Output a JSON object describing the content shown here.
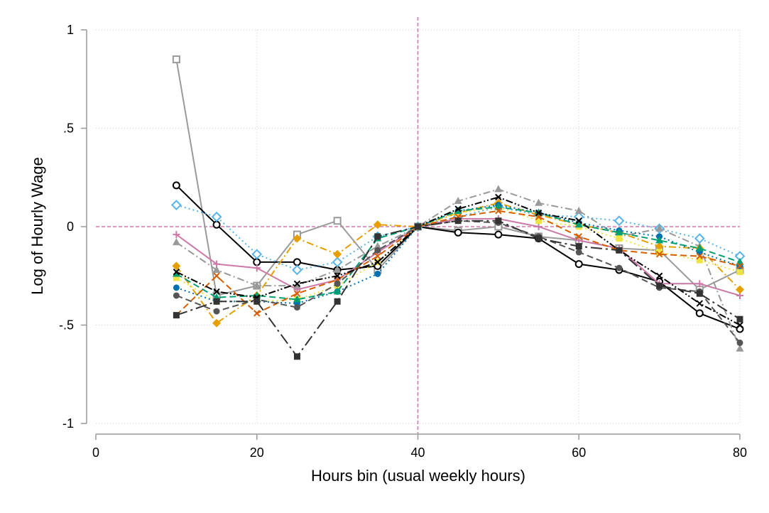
{
  "chart_data": {
    "type": "line",
    "xlabel": "Hours bin (usual weekly hours)",
    "ylabel": "Log of Hourly Wage",
    "xlim": [
      0,
      80
    ],
    "ylim": [
      -1,
      1
    ],
    "xticks": [
      0,
      20,
      40,
      60,
      80
    ],
    "yticks": [
      -1,
      -0.5,
      0,
      0.5,
      1
    ],
    "xtick_labels": [
      "0",
      "20",
      "40",
      "60",
      "80"
    ],
    "ytick_labels": [
      "-1",
      "-.5",
      "0",
      ".5",
      "1"
    ],
    "grid": "dotted",
    "reference_lines": {
      "x": 40,
      "y": 0,
      "color": "#d876a8"
    },
    "x": [
      10,
      15,
      20,
      25,
      30,
      35,
      40,
      45,
      50,
      55,
      60,
      65,
      70,
      75,
      80
    ],
    "series": [
      {
        "color": "#9a9a9a",
        "marker": "hollow-square",
        "dash": "solid",
        "values": [
          0.85,
          -0.35,
          -0.3,
          -0.04,
          0.03,
          -0.22,
          0.0,
          -0.02,
          0.0,
          -0.05,
          -0.07,
          -0.11,
          -0.12,
          -0.32,
          -0.22
        ]
      },
      {
        "color": "#000000",
        "marker": "hollow-circle",
        "dash": "solid",
        "values": [
          0.21,
          0.01,
          -0.18,
          -0.18,
          -0.22,
          -0.2,
          0.0,
          -0.03,
          -0.04,
          -0.06,
          -0.19,
          -0.22,
          -0.28,
          -0.44,
          -0.52
        ]
      },
      {
        "color": "#56b4e9",
        "marker": "hollow-diamond",
        "dash": "dotted",
        "values": [
          0.11,
          0.05,
          -0.14,
          -0.22,
          -0.18,
          -0.05,
          0.0,
          0.05,
          0.1,
          0.06,
          0.05,
          0.03,
          -0.01,
          -0.06,
          -0.15
        ]
      },
      {
        "color": "#cc79a7",
        "marker": "plus",
        "dash": "solid",
        "values": [
          -0.04,
          -0.19,
          -0.21,
          -0.32,
          -0.27,
          -0.13,
          0.0,
          0.04,
          0.04,
          0.0,
          -0.07,
          -0.11,
          -0.29,
          -0.29,
          -0.35
        ]
      },
      {
        "color": "#999999",
        "marker": "triangle",
        "dash": "dashdot",
        "values": [
          -0.08,
          -0.22,
          -0.3,
          -0.3,
          -0.22,
          -0.1,
          0.0,
          0.13,
          0.19,
          0.12,
          0.08,
          -0.05,
          -0.01,
          -0.1,
          -0.62
        ]
      },
      {
        "color": "#e69f00",
        "marker": "diamond",
        "dash": "dashdot",
        "values": [
          -0.2,
          -0.49,
          -0.35,
          -0.06,
          -0.14,
          0.01,
          0.0,
          0.07,
          0.12,
          0.06,
          0.01,
          -0.03,
          -0.1,
          -0.11,
          -0.32
        ]
      },
      {
        "color": "#f0e442",
        "marker": "square",
        "dash": "dotted",
        "values": [
          -0.26,
          -0.38,
          -0.38,
          -0.37,
          -0.3,
          -0.18,
          0.0,
          0.07,
          0.1,
          0.03,
          0.0,
          -0.06,
          -0.13,
          -0.17,
          -0.23
        ]
      },
      {
        "color": "#0072b2",
        "marker": "circle",
        "dash": "dotted",
        "values": [
          -0.31,
          -0.38,
          -0.38,
          -0.39,
          -0.33,
          -0.24,
          0.0,
          0.08,
          0.11,
          0.07,
          0.02,
          -0.02,
          -0.05,
          -0.13,
          -0.2
        ]
      },
      {
        "color": "#009e73",
        "marker": "triangle",
        "dash": "dashed",
        "values": [
          -0.24,
          -0.36,
          -0.35,
          -0.37,
          -0.33,
          -0.06,
          0.0,
          0.08,
          0.1,
          0.07,
          0.01,
          -0.03,
          -0.07,
          -0.11,
          -0.18
        ]
      },
      {
        "color": "#d55e00",
        "marker": "x",
        "dash": "dashed",
        "values": [
          -0.45,
          -0.25,
          -0.44,
          -0.34,
          -0.27,
          -0.15,
          0.0,
          0.05,
          0.08,
          0.05,
          -0.05,
          -0.12,
          -0.14,
          -0.15,
          -0.2
        ]
      },
      {
        "color": "#555555",
        "marker": "circle",
        "dash": "dashed",
        "values": [
          -0.35,
          -0.43,
          -0.37,
          -0.41,
          -0.29,
          -0.12,
          0.0,
          0.03,
          0.02,
          -0.05,
          -0.13,
          -0.21,
          -0.31,
          -0.33,
          -0.59
        ]
      },
      {
        "color": "#000000",
        "marker": "x",
        "dash": "dashdotdot",
        "values": [
          -0.23,
          -0.33,
          -0.36,
          -0.29,
          -0.25,
          -0.18,
          0.0,
          0.09,
          0.15,
          0.07,
          0.03,
          -0.12,
          -0.25,
          -0.39,
          -0.5
        ]
      },
      {
        "color": "#333333",
        "marker": "square",
        "dash": "longdashdot",
        "values": [
          -0.45,
          -0.38,
          -0.38,
          -0.66,
          -0.38,
          -0.05,
          0.0,
          0.03,
          0.03,
          -0.06,
          -0.1,
          -0.12,
          -0.3,
          -0.34,
          -0.47
        ]
      }
    ]
  }
}
